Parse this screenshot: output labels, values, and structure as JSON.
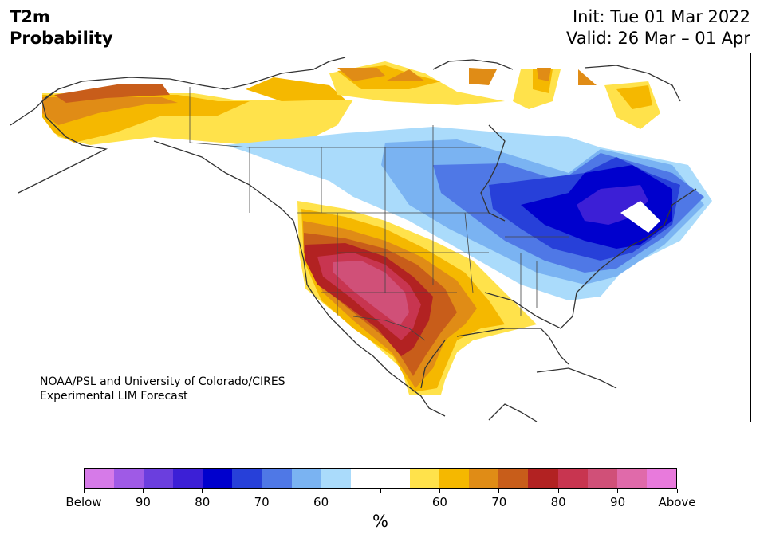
{
  "title": {
    "left_line1": "T2m",
    "left_line2": "Probability",
    "init": "Init: Tue 01 Mar 2022",
    "valid": "Valid: 26 Mar – 01 Apr"
  },
  "credit": {
    "line1": "NOAA/PSL and University of Colorado/CIRES",
    "line2": "Experimental LIM Forecast"
  },
  "colorbar": {
    "unit": "%",
    "colors": [
      "#d67ae8",
      "#9f5ae6",
      "#6b3ede",
      "#3c1fd6",
      "#0000cd",
      "#2740d9",
      "#4f78e6",
      "#7ab3f2",
      "#aadbfb",
      "#ffffff",
      "#ffffff",
      "#ffe24b",
      "#f5b800",
      "#e08c16",
      "#c85d1a",
      "#b22222",
      "#c83550",
      "#d05078",
      "#e06aaa",
      "#e87adc"
    ],
    "labels": [
      "Below",
      "90",
      "80",
      "70",
      "60",
      "",
      "60",
      "70",
      "80",
      "90",
      "Above"
    ]
  },
  "colors": {
    "frame": "#000000",
    "coast": "#333333"
  }
}
